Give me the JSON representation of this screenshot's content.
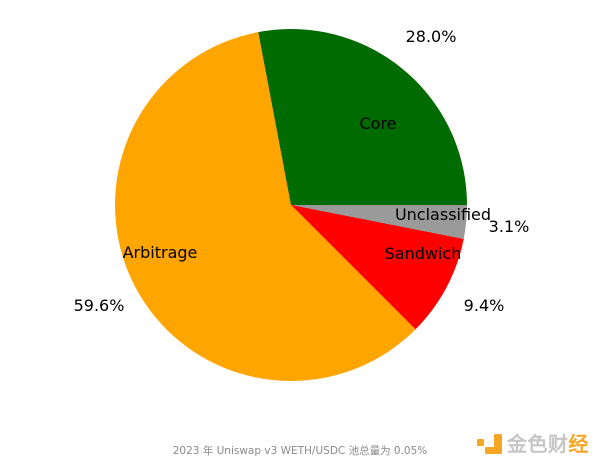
{
  "chart_data": {
    "type": "pie",
    "title": "",
    "caption": "2023 年 Uniswap v3 WETH/USDC 池总量为 0.05%",
    "slices": [
      {
        "label": "Core",
        "value": 28.0,
        "pct_label": "28.0%",
        "color": "#006b00"
      },
      {
        "label": "Unclassified",
        "value": 3.1,
        "pct_label": "3.1%",
        "color": "#9a9a9a"
      },
      {
        "label": "Sandwich",
        "value": 9.4,
        "pct_label": "9.4%",
        "color": "#ff0000"
      },
      {
        "label": "Arbitrage",
        "value": 59.6,
        "pct_label": "59.6%",
        "color": "#ffa500"
      }
    ],
    "start_deg": -10.7,
    "direction": "clockwise",
    "legend_position": "none",
    "label_placement": "category names inside slices, percentages outside"
  },
  "watermark": {
    "text_main": "金色财",
    "text_accent": "经",
    "text_color": "#c6c6c6",
    "accent_color": "#f5a623"
  }
}
